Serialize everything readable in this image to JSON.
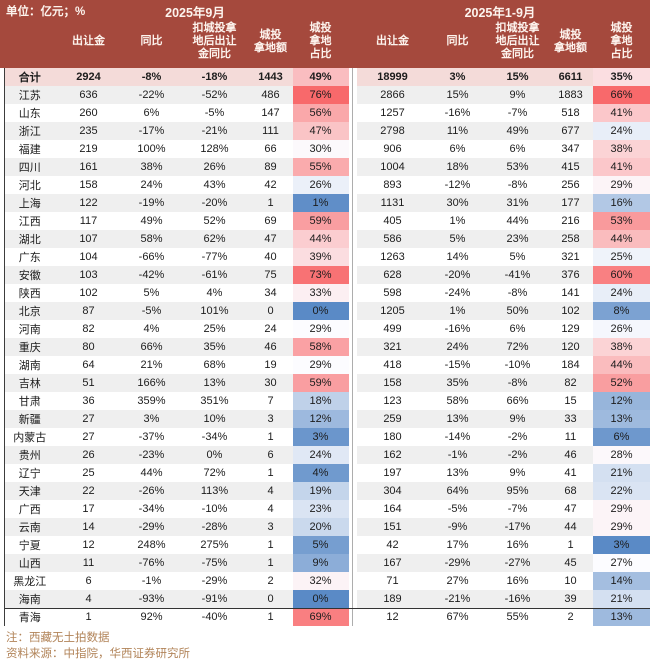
{
  "header": {
    "unit": "单位：亿元；%",
    "period_m9": "2025年9月",
    "period_ytd": "2025年1-9月",
    "columns": [
      "出让金",
      "同比",
      "扣城投拿\n地后出让\n金同比",
      "城投\n拿地额",
      "城投\n拿地\n占比"
    ]
  },
  "footer": {
    "note": "注：西藏无土拍数据",
    "source": "资料来源：中指院，华西证券研究所"
  },
  "colors": {
    "header_bg": "#A5493D",
    "header_text": "#FDF4EE",
    "total_row_bg": "#F4DBD9",
    "stripe_gray": "#EFEFEF",
    "heat_low": "#5A8AC6",
    "heat_mid": "#FCFCFF",
    "heat_high": "#F8696B",
    "footer_text": "#B28459"
  },
  "table": {
    "heat_col_indexes": [
      4,
      9
    ],
    "rows": [
      {
        "name": "合计",
        "cells": [
          "2924",
          "-8%",
          "-18%",
          "1443",
          "49%",
          "18999",
          "3%",
          "15%",
          "6611",
          "35%"
        ]
      },
      {
        "name": "江苏",
        "cells": [
          "636",
          "-22%",
          "-52%",
          "486",
          "76%",
          "2866",
          "15%",
          "9%",
          "1883",
          "66%"
        ]
      },
      {
        "name": "山东",
        "cells": [
          "260",
          "6%",
          "-5%",
          "147",
          "56%",
          "1257",
          "-16%",
          "-7%",
          "518",
          "41%"
        ]
      },
      {
        "name": "浙江",
        "cells": [
          "235",
          "-17%",
          "-21%",
          "111",
          "47%",
          "2798",
          "11%",
          "49%",
          "677",
          "24%"
        ]
      },
      {
        "name": "福建",
        "cells": [
          "219",
          "100%",
          "128%",
          "66",
          "30%",
          "906",
          "6%",
          "6%",
          "347",
          "38%"
        ]
      },
      {
        "name": "四川",
        "cells": [
          "161",
          "38%",
          "26%",
          "89",
          "55%",
          "1004",
          "18%",
          "53%",
          "415",
          "41%"
        ]
      },
      {
        "name": "河北",
        "cells": [
          "158",
          "24%",
          "43%",
          "42",
          "26%",
          "893",
          "-12%",
          "-8%",
          "256",
          "29%"
        ]
      },
      {
        "name": "上海",
        "cells": [
          "122",
          "-19%",
          "-20%",
          "1",
          "1%",
          "1131",
          "30%",
          "31%",
          "177",
          "16%"
        ]
      },
      {
        "name": "江西",
        "cells": [
          "117",
          "49%",
          "52%",
          "69",
          "59%",
          "405",
          "1%",
          "44%",
          "216",
          "53%"
        ]
      },
      {
        "name": "湖北",
        "cells": [
          "107",
          "58%",
          "62%",
          "47",
          "44%",
          "586",
          "5%",
          "23%",
          "258",
          "44%"
        ]
      },
      {
        "name": "广东",
        "cells": [
          "104",
          "-66%",
          "-77%",
          "40",
          "39%",
          "1263",
          "14%",
          "5%",
          "321",
          "25%"
        ]
      },
      {
        "name": "安徽",
        "cells": [
          "103",
          "-42%",
          "-61%",
          "75",
          "73%",
          "628",
          "-20%",
          "-41%",
          "376",
          "60%"
        ]
      },
      {
        "name": "陕西",
        "cells": [
          "102",
          "5%",
          "4%",
          "34",
          "33%",
          "598",
          "-24%",
          "-8%",
          "141",
          "24%"
        ]
      },
      {
        "name": "北京",
        "cells": [
          "87",
          "-5%",
          "101%",
          "0",
          "0%",
          "1205",
          "1%",
          "50%",
          "102",
          "8%"
        ]
      },
      {
        "name": "河南",
        "cells": [
          "82",
          "4%",
          "25%",
          "24",
          "29%",
          "499",
          "-16%",
          "6%",
          "129",
          "26%"
        ]
      },
      {
        "name": "重庆",
        "cells": [
          "80",
          "66%",
          "35%",
          "46",
          "58%",
          "321",
          "24%",
          "72%",
          "120",
          "38%"
        ]
      },
      {
        "name": "湖南",
        "cells": [
          "64",
          "21%",
          "68%",
          "19",
          "29%",
          "418",
          "-15%",
          "-10%",
          "184",
          "44%"
        ]
      },
      {
        "name": "吉林",
        "cells": [
          "51",
          "166%",
          "13%",
          "30",
          "59%",
          "158",
          "35%",
          "-8%",
          "82",
          "52%"
        ]
      },
      {
        "name": "甘肃",
        "cells": [
          "36",
          "359%",
          "351%",
          "7",
          "18%",
          "123",
          "58%",
          "66%",
          "15",
          "12%"
        ]
      },
      {
        "name": "新疆",
        "cells": [
          "27",
          "3%",
          "10%",
          "3",
          "12%",
          "259",
          "13%",
          "9%",
          "33",
          "13%"
        ]
      },
      {
        "name": "内蒙古",
        "cells": [
          "27",
          "-37%",
          "-34%",
          "1",
          "3%",
          "180",
          "-14%",
          "-2%",
          "11",
          "6%"
        ]
      },
      {
        "name": "贵州",
        "cells": [
          "26",
          "-23%",
          "0%",
          "6",
          "24%",
          "162",
          "-1%",
          "-2%",
          "46",
          "28%"
        ]
      },
      {
        "name": "辽宁",
        "cells": [
          "25",
          "44%",
          "72%",
          "1",
          "4%",
          "197",
          "13%",
          "9%",
          "41",
          "21%"
        ]
      },
      {
        "name": "天津",
        "cells": [
          "22",
          "-26%",
          "113%",
          "4",
          "19%",
          "304",
          "64%",
          "95%",
          "68",
          "22%"
        ]
      },
      {
        "name": "广西",
        "cells": [
          "17",
          "-34%",
          "-10%",
          "4",
          "23%",
          "164",
          "-5%",
          "-7%",
          "47",
          "29%"
        ]
      },
      {
        "name": "云南",
        "cells": [
          "14",
          "-29%",
          "-28%",
          "3",
          "20%",
          "151",
          "-9%",
          "-17%",
          "44",
          "29%"
        ]
      },
      {
        "name": "宁夏",
        "cells": [
          "12",
          "248%",
          "275%",
          "1",
          "5%",
          "42",
          "17%",
          "16%",
          "1",
          "3%"
        ]
      },
      {
        "name": "山西",
        "cells": [
          "11",
          "-76%",
          "-75%",
          "1",
          "9%",
          "167",
          "-29%",
          "-27%",
          "45",
          "27%"
        ]
      },
      {
        "name": "黑龙江",
        "cells": [
          "6",
          "-1%",
          "-29%",
          "2",
          "32%",
          "71",
          "27%",
          "16%",
          "10",
          "14%"
        ]
      },
      {
        "name": "海南",
        "cells": [
          "4",
          "-93%",
          "-91%",
          "0",
          "0%",
          "189",
          "-21%",
          "-16%",
          "39",
          "21%"
        ]
      },
      {
        "name": "青海",
        "cells": [
          "1",
          "92%",
          "-40%",
          "1",
          "69%",
          "12",
          "67%",
          "55%",
          "2",
          "13%"
        ]
      }
    ]
  }
}
